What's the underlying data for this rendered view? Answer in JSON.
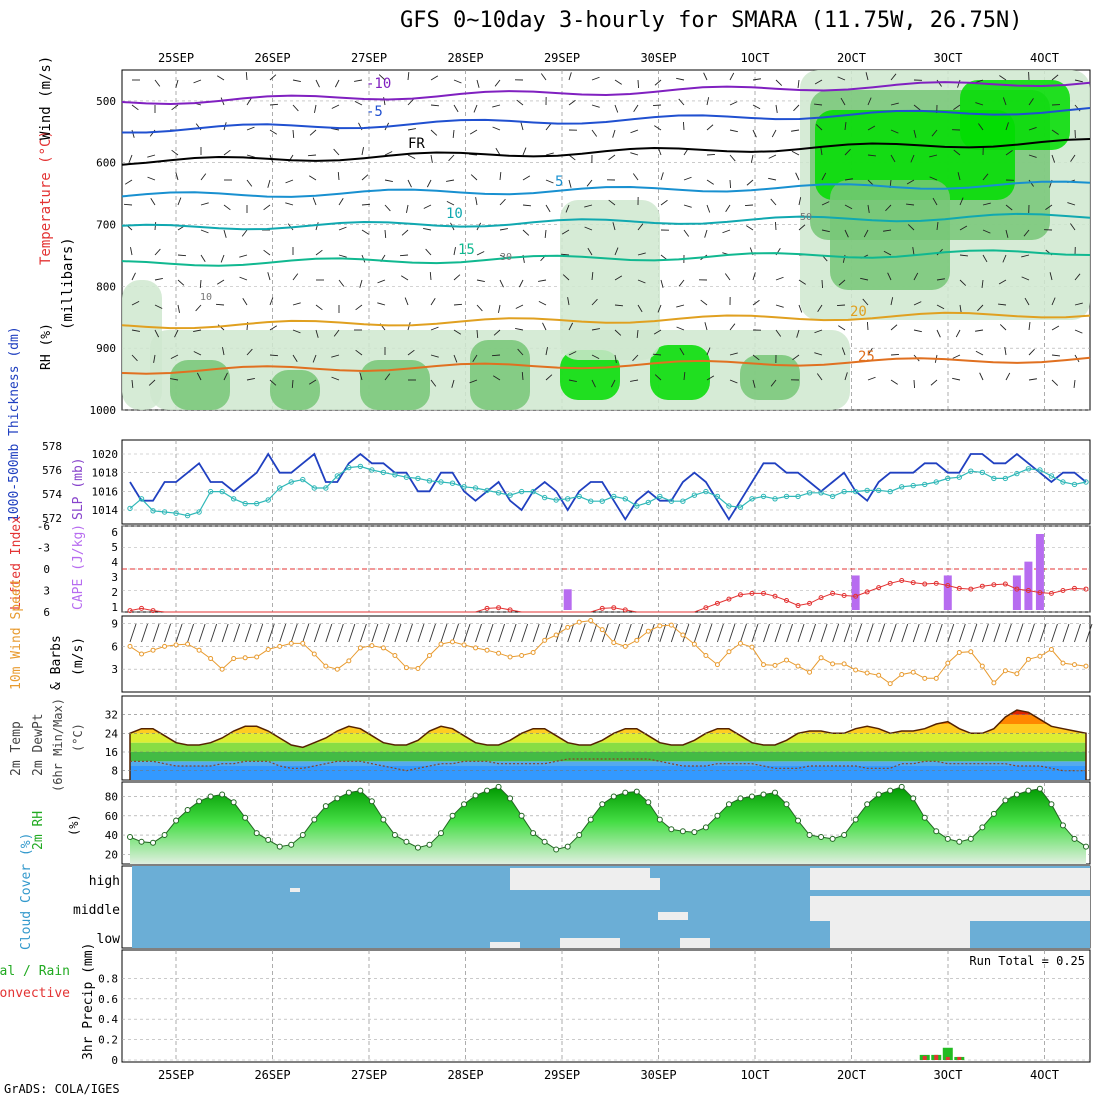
{
  "title": "GFS 0~10day 3-hourly for SMARA (11.75W, 26.75N)",
  "credit": "GrADS: COLA/IGES",
  "x_axis": {
    "day_labels": [
      "25SEP",
      "26SEP",
      "27SEP",
      "28SEP",
      "29SEP",
      "30SEP",
      "1OCT",
      "2OCT",
      "3OCT",
      "4OCT"
    ]
  },
  "colors": {
    "rh_green": "#00dd00",
    "rh_mid": "#77c777",
    "rh_light": "#cfe8cf",
    "sky": "#6baed6",
    "cloud": "#eeeeee",
    "purple": "#b76cf0",
    "red": "#e33333",
    "orange": "#e89b30",
    "blue": "#2040c0",
    "teal": "#30b8b8"
  },
  "chart_data": [
    {
      "type": "heatmap",
      "name": "upper-air",
      "ylabel_parts": [
        "Wind (m/s)",
        "Temperature (°C)",
        "(millibars)",
        "RH (%)"
      ],
      "ylim": [
        1000,
        450
      ],
      "y_ticks": [
        500,
        600,
        700,
        800,
        900,
        1000
      ],
      "isotherm_labels": [
        "-10",
        "-5",
        "FR",
        "5",
        "10",
        "15",
        "20",
        "25"
      ],
      "rh_labels": [
        "10",
        "30",
        "50"
      ]
    },
    {
      "type": "line",
      "name": "slp-thickness",
      "left_axis_label": "1000-500mb Thickness (dm)",
      "right_axis_label": "SLP (mb)",
      "left_ticks": [
        572,
        574,
        576,
        578
      ],
      "right_ticks": [
        1014,
        1016,
        1018,
        1020
      ],
      "series": [
        {
          "name": "SLP",
          "values": [
            1017,
            1015,
            1015,
            1017,
            1017,
            1018,
            1019,
            1017,
            1017,
            1016,
            1017,
            1018,
            1020,
            1018,
            1018,
            1019,
            1020,
            1017,
            1017,
            1019,
            1020,
            1019,
            1019,
            1018,
            1018,
            1016,
            1016,
            1018,
            1018,
            1016,
            1015,
            1016,
            1017,
            1015,
            1014,
            1016,
            1017,
            1016,
            1014,
            1016,
            1017,
            1017,
            1015,
            1013,
            1015,
            1016,
            1015,
            1015,
            1017,
            1018,
            1017,
            1015,
            1013,
            1015,
            1017,
            1019,
            1019,
            1018,
            1018,
            1017,
            1016,
            1017,
            1018,
            1016,
            1015,
            1017,
            1018,
            1018,
            1018,
            1019,
            1019,
            1018,
            1018,
            1020,
            1020,
            1019,
            1019,
            1020,
            1019,
            1018,
            1017,
            1018,
            1018,
            1017
          ]
        },
        {
          "name": "Thickness",
          "values": [
            572.8,
            573.6,
            572.6,
            572.5,
            572.4,
            572.2,
            572.5,
            574.2,
            574.2,
            573.6,
            573.2,
            573.2,
            573.5,
            574.5,
            575.0,
            575.2,
            574.5,
            574.5,
            575.5,
            576.2,
            576.3,
            576.0,
            575.8,
            575.6,
            575.4,
            575.3,
            575.1,
            575.0,
            574.9,
            574.6,
            574.5,
            574.3,
            574.1,
            573.9,
            574.2,
            574.2,
            573.7,
            573.5,
            573.6,
            573.8,
            573.4,
            573.4,
            573.8,
            573.6,
            573.0,
            573.3,
            573.8,
            573.4,
            573.4,
            573.9,
            574.2,
            573.8,
            573.0,
            572.9,
            573.6,
            573.8,
            573.6,
            573.8,
            573.8,
            574.1,
            574.1,
            573.8,
            574.2,
            574.2,
            574.3,
            574.3,
            574.2,
            574.6,
            574.7,
            574.8,
            575.0,
            575.3,
            575.4,
            575.9,
            575.8,
            575.3,
            575.3,
            575.7,
            576.1,
            576.0,
            575.5,
            575.0,
            574.8,
            575.0
          ]
        }
      ]
    },
    {
      "type": "bar",
      "name": "lifted-index-cape",
      "left_axis_label": "Lifted Index",
      "right_axis_label": "CAPE (J/kg)",
      "left_ticks": [
        "-6",
        "-3",
        "0",
        "3",
        "6"
      ],
      "right_ticks": [
        "6",
        "5",
        "4",
        "3",
        "2",
        "1"
      ],
      "cape_bars": [
        {
          "index": 38,
          "value": 2
        },
        {
          "index": 63,
          "value": 3
        },
        {
          "index": 71,
          "value": 3
        },
        {
          "index": 77,
          "value": 3
        },
        {
          "index": 78,
          "value": 4
        },
        {
          "index": 79,
          "value": 6
        }
      ],
      "lifted_index": [
        5.8,
        5.5,
        5.8,
        6,
        6,
        6,
        6,
        6,
        6,
        6,
        6,
        6,
        6,
        6,
        6,
        6,
        6,
        6,
        6,
        6,
        6,
        6,
        6,
        6,
        6,
        6,
        6,
        6,
        6,
        6,
        6,
        5.5,
        5.4,
        5.7,
        6,
        6,
        6,
        6,
        6,
        6,
        6,
        5.5,
        5.4,
        5.7,
        6,
        6,
        6,
        6,
        6,
        6,
        5.4,
        4.8,
        4.2,
        3.6,
        3.4,
        3.4,
        3.8,
        4.4,
        5.1,
        4.8,
        4,
        3.4,
        3.7,
        3.8,
        3.2,
        2.6,
        2.0,
        1.6,
        1.9,
        2.1,
        2.0,
        2.3,
        2.7,
        2.8,
        2.4,
        2.2,
        2.1,
        2.8,
        3.0,
        3.3,
        3.4,
        3.0,
        2.7,
        2.8
      ]
    },
    {
      "type": "line",
      "name": "wind10m",
      "ylabel_parts": [
        "10m Wind Speed",
        "& Barbs",
        "(m/s)"
      ],
      "y_ticks": [
        3,
        6,
        9
      ],
      "ylim": [
        0,
        10
      ],
      "values": [
        6,
        5,
        5.5,
        6,
        6.2,
        6.3,
        5.5,
        4.4,
        3,
        4.4,
        4.5,
        4.6,
        5.6,
        6,
        6.4,
        6.4,
        5,
        3.4,
        3,
        4.1,
        5.8,
        6.1,
        5.8,
        4.8,
        3.2,
        3.1,
        4.8,
        6.3,
        6.6,
        6.2,
        5.8,
        5.5,
        5.1,
        4.6,
        4.8,
        5.2,
        6.8,
        7.5,
        8.5,
        9.2,
        9.4,
        8.2,
        6.5,
        6,
        6.8,
        8,
        8.7,
        8.8,
        7.5,
        6.3,
        4.8,
        3.6,
        5.3,
        6.4,
        5.9,
        3.6,
        3.5,
        4.2,
        3.4,
        2.6,
        4.5,
        3.7,
        3.7,
        2.9,
        2.5,
        2.2,
        1.1,
        2.3,
        2.6,
        1.8,
        1.8,
        3.8,
        5.2,
        5.3,
        3.4,
        1.2,
        2.8,
        2.4,
        4.3,
        4.7,
        5.6,
        3.8,
        3.6,
        3.4
      ]
    },
    {
      "type": "area",
      "name": "temperature",
      "ylabel_parts": [
        "2m Temp",
        "2m DewPt",
        "(6hr Min/Max)",
        "(°C)"
      ],
      "y_ticks": [
        8,
        16,
        24,
        32
      ],
      "ylim": [
        4,
        40
      ],
      "temp": [
        24,
        26,
        26,
        23,
        20,
        19,
        19,
        20,
        22,
        25,
        27,
        27,
        25,
        22,
        19,
        18,
        20,
        22,
        25,
        27,
        26,
        23,
        20,
        19,
        19,
        21,
        25,
        27,
        26,
        23,
        20,
        19,
        19,
        21,
        24,
        26,
        26,
        23,
        20,
        19,
        19,
        21,
        24,
        26,
        26,
        23,
        20,
        19,
        19,
        21,
        24,
        26,
        26,
        23,
        20,
        19,
        19,
        21,
        24,
        25,
        25,
        24,
        24,
        26,
        27,
        26,
        24,
        25,
        25,
        26,
        28,
        29,
        26,
        24,
        24,
        26,
        31,
        34,
        33,
        30,
        27,
        26,
        25,
        24
      ],
      "dewpoint": [
        12,
        12,
        12,
        11,
        10,
        10,
        10,
        10,
        11,
        11,
        12,
        12,
        12,
        10,
        9,
        9,
        10,
        11,
        12,
        12,
        12,
        11,
        10,
        9,
        8,
        9,
        10,
        11,
        11,
        12,
        12,
        12,
        11,
        11,
        11,
        11,
        11,
        12,
        13,
        13,
        13,
        13,
        13,
        13,
        13,
        13,
        12,
        11,
        10,
        10,
        10,
        11,
        11,
        11,
        11,
        10,
        9,
        9,
        9,
        10,
        10,
        10,
        10,
        10,
        9,
        9,
        9,
        11,
        11,
        12,
        12,
        11,
        11,
        11,
        11,
        11,
        11,
        10,
        10,
        10,
        9,
        8,
        8,
        8
      ]
    },
    {
      "type": "area",
      "name": "relative-humidity",
      "ylabel_parts": [
        "2m RH",
        "(%)"
      ],
      "y_ticks": [
        20,
        40,
        60,
        80
      ],
      "ylim": [
        10,
        95
      ],
      "values": [
        38,
        33,
        32,
        40,
        55,
        66,
        75,
        80,
        82,
        74,
        58,
        42,
        35,
        28,
        30,
        40,
        56,
        70,
        78,
        84,
        86,
        75,
        56,
        40,
        33,
        27,
        30,
        42,
        60,
        72,
        81,
        86,
        90,
        78,
        60,
        42,
        33,
        25,
        28,
        40,
        56,
        72,
        80,
        84,
        85,
        74,
        56,
        46,
        44,
        43,
        48,
        60,
        72,
        78,
        80,
        82,
        84,
        72,
        55,
        40,
        38,
        36,
        40,
        56,
        72,
        82,
        86,
        90,
        78,
        58,
        44,
        36,
        33,
        36,
        48,
        62,
        76,
        82,
        86,
        88,
        72,
        50,
        36,
        28
      ]
    },
    {
      "type": "bar",
      "name": "cloud-cover",
      "ylabel": "Cloud Cover (%)",
      "levels": [
        "high",
        "middle",
        "low"
      ]
    },
    {
      "type": "bar",
      "name": "precipitation",
      "ylabel": "3hr Precip (mm)",
      "left_label_parts": [
        "Total / Rain",
        "Convective"
      ],
      "y_ticks": [
        "0",
        "0.2",
        "0.4",
        "0.6",
        "0.8"
      ],
      "ylim": [
        0,
        1.0
      ],
      "run_total": "Run Total = 0.25",
      "bars": [
        {
          "index": 69,
          "total": 0.05,
          "convective": 0.04
        },
        {
          "index": 70,
          "total": 0.05,
          "convective": 0.05
        },
        {
          "index": 71,
          "total": 0.12,
          "convective": 0.03
        },
        {
          "index": 72,
          "total": 0.03,
          "convective": 0.03
        }
      ]
    }
  ]
}
